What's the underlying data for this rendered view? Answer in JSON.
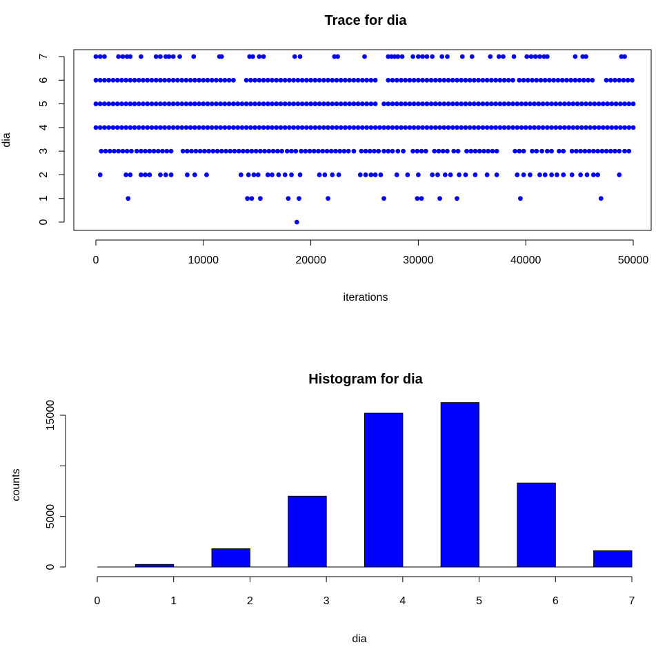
{
  "chart_data": [
    {
      "type": "scatter",
      "title": "Trace for  dia",
      "xlabel": "iterations",
      "ylabel": "dia",
      "xlim": [
        0,
        50000
      ],
      "ylim": [
        0,
        7
      ],
      "xticks": [
        "0",
        "10000",
        "20000",
        "30000",
        "40000",
        "50000"
      ],
      "yticks": [
        "0",
        "1",
        "2",
        "3",
        "4",
        "5",
        "6",
        "7"
      ],
      "marker_color": "#0000ff",
      "series": [
        {
          "values_by_level": [
            {
              "y": 0,
              "x": [
                18700
              ]
            },
            {
              "y": 1,
              "x": [
                3000,
                14100,
                14500,
                15300,
                17900,
                18900,
                21600,
                26800,
                29900,
                30300,
                32000,
                33600,
                39500,
                47000
              ]
            },
            {
              "y": 2,
              "x": [
                400,
                2800,
                3200,
                4200,
                4600,
                5000,
                6000,
                6500,
                7000,
                8500,
                9200,
                10300,
                13500,
                14200,
                14700,
                15100,
                16000,
                16400,
                17000,
                17600,
                18200,
                19000,
                20800,
                21300,
                22000,
                22600,
                24600,
                25100,
                25600,
                26000,
                26500,
                28000,
                29000,
                30000,
                31300,
                31800,
                32500,
                33000,
                33800,
                34400,
                35300,
                36400,
                37300,
                39200,
                39800,
                40400,
                41300,
                41800,
                42400,
                42900,
                43500,
                44300,
                45100,
                45700,
                46300,
                46700,
                48700
              ]
            },
            {
              "y": 3,
              "x": [
                500,
                900,
                1300,
                1700,
                2100,
                2500,
                2900,
                3300,
                3800,
                4200,
                4600,
                5000,
                5400,
                5800,
                6200,
                6600,
                7000,
                8100,
                8500,
                8900,
                9300,
                9700,
                10100,
                10500,
                10900,
                11300,
                11700,
                12100,
                12500,
                12900,
                13300,
                13700,
                14100,
                14500,
                14900,
                15300,
                15700,
                16100,
                16500,
                16900,
                17300,
                17800,
                18200,
                18600,
                19100,
                19500,
                19900,
                20300,
                20700,
                21100,
                21500,
                21900,
                22300,
                22700,
                23100,
                23500,
                24000,
                24700,
                25100,
                25500,
                25900,
                26300,
                26800,
                27200,
                27600,
                28100,
                28600,
                29500,
                29900,
                30300,
                30700,
                31500,
                31900,
                32300,
                32700,
                33300,
                33700,
                34500,
                34900,
                35300,
                35700,
                36100,
                36500,
                36900,
                37300,
                39000,
                39400,
                39800,
                40600,
                41000,
                41500,
                42000,
                42400,
                43100,
                43500,
                44300,
                44700,
                45100,
                45500,
                45900,
                46300,
                46700,
                47100,
                47500,
                47900,
                48300,
                48700,
                49200,
                49600
              ]
            },
            {
              "y": 4,
              "x": [
                0,
                400,
                800,
                1200,
                1600,
                2000,
                2400,
                2800,
                3200,
                3600,
                4000,
                4400,
                4800,
                5200,
                5600,
                6000,
                6400,
                6800,
                7200,
                7600,
                8000,
                8400,
                8800,
                9200,
                9600,
                10000,
                10400,
                10800,
                11200,
                11600,
                12000,
                12400,
                12800,
                13200,
                13600,
                14000,
                14400,
                14800,
                15200,
                15600,
                16000,
                16400,
                16800,
                17200,
                17600,
                18000,
                18400,
                18800,
                19200,
                19600,
                20000,
                20400,
                20800,
                21200,
                21600,
                22000,
                22400,
                22800,
                23200,
                23600,
                24000,
                24400,
                24800,
                25200,
                25600,
                26000,
                26400,
                26800,
                27200,
                27600,
                28000,
                28400,
                28800,
                29200,
                29600,
                30000,
                30400,
                30800,
                31200,
                31600,
                32000,
                32400,
                32800,
                33200,
                33600,
                34000,
                34400,
                34800,
                35200,
                35600,
                36000,
                36400,
                36800,
                37200,
                37600,
                38000,
                38400,
                38800,
                39200,
                39600,
                40000,
                40400,
                40800,
                41200,
                41600,
                42000,
                42400,
                42800,
                43200,
                43600,
                44000,
                44400,
                44800,
                45200,
                45600,
                46000,
                46400,
                46800,
                47200,
                47600,
                48000,
                48400,
                48800,
                49200,
                49600,
                50000
              ]
            },
            {
              "y": 5,
              "x": [
                0,
                400,
                800,
                1200,
                1600,
                2000,
                2400,
                2800,
                3200,
                3600,
                4000,
                4400,
                4800,
                5200,
                5600,
                6000,
                6400,
                6800,
                7200,
                7600,
                8000,
                8400,
                8800,
                9200,
                9600,
                10000,
                10400,
                10800,
                11200,
                11600,
                12000,
                12400,
                12800,
                13200,
                13600,
                14000,
                14400,
                14800,
                15200,
                15600,
                16000,
                16400,
                16800,
                17200,
                17600,
                18000,
                18400,
                18800,
                19200,
                19600,
                20000,
                20400,
                20800,
                21200,
                21600,
                22000,
                22400,
                22800,
                23200,
                23600,
                24000,
                24400,
                24800,
                25200,
                25600,
                26000,
                26800,
                27200,
                27600,
                28000,
                28400,
                28800,
                29200,
                29600,
                30000,
                30400,
                30800,
                31200,
                31600,
                32000,
                32400,
                32800,
                33200,
                33600,
                34000,
                34400,
                34800,
                35200,
                35600,
                36000,
                36400,
                36800,
                37200,
                37600,
                38000,
                38400,
                38800,
                39200,
                39600,
                40000,
                40400,
                40800,
                41200,
                41600,
                42000,
                42400,
                42800,
                43200,
                43600,
                44000,
                44400,
                44800,
                45200,
                45600,
                46000,
                46400,
                46800,
                47200,
                47600,
                48000,
                48400,
                48800,
                49200,
                49600,
                50000
              ]
            },
            {
              "y": 6,
              "x": [
                0,
                400,
                800,
                1200,
                1600,
                2000,
                2400,
                2800,
                3200,
                3600,
                4000,
                4400,
                4800,
                5200,
                5600,
                6000,
                6400,
                6800,
                7200,
                7600,
                8000,
                8400,
                8800,
                9200,
                9600,
                10000,
                10400,
                10800,
                11200,
                11600,
                12000,
                12400,
                12800,
                14000,
                14400,
                14800,
                15200,
                15600,
                16000,
                16400,
                16800,
                17200,
                17600,
                18000,
                18400,
                18800,
                19200,
                19600,
                20000,
                20400,
                20800,
                21200,
                21600,
                22000,
                22400,
                22800,
                23200,
                23600,
                24000,
                24400,
                24800,
                25200,
                25600,
                26000,
                27200,
                27600,
                28000,
                28400,
                28800,
                29200,
                29600,
                30000,
                30400,
                30800,
                31200,
                31600,
                32000,
                32400,
                32800,
                33200,
                33600,
                34000,
                34400,
                34800,
                35200,
                35600,
                36000,
                36400,
                36800,
                37200,
                37600,
                38000,
                38400,
                38800,
                39400,
                39800,
                40200,
                40600,
                41000,
                41400,
                41800,
                42200,
                42600,
                43000,
                43400,
                43800,
                44200,
                44600,
                45000,
                45400,
                45800,
                46200,
                47500,
                47900,
                48300,
                48700,
                49100,
                49500,
                49900
              ]
            },
            {
              "y": 7,
              "x": [
                0,
                400,
                800,
                2100,
                2500,
                2900,
                3200,
                4200,
                5600,
                6000,
                6500,
                6800,
                7200,
                7800,
                9100,
                11500,
                11700,
                14300,
                14600,
                15200,
                15600,
                18500,
                19000,
                22200,
                22500,
                25000,
                27200,
                27500,
                27800,
                28100,
                28500,
                29500,
                30000,
                30400,
                30800,
                31300,
                32200,
                32700,
                34100,
                35000,
                36700,
                37500,
                37900,
                38900,
                40100,
                40500,
                40900,
                41300,
                41700,
                42000,
                44600,
                45300,
                45600,
                48900,
                49200
              ]
            }
          ]
        }
      ]
    },
    {
      "type": "bar",
      "title": "Histogram for  dia",
      "xlabel": "dia",
      "ylabel": "counts",
      "xlim": [
        0,
        7
      ],
      "ylim": [
        0,
        16000
      ],
      "xticks": [
        "0",
        "1",
        "2",
        "3",
        "4",
        "5",
        "6",
        "7"
      ],
      "yticks": [
        "0",
        "5000",
        "15000"
      ],
      "bar_color": "#0000ff",
      "bins": [
        {
          "from": 0,
          "to": 0.5,
          "count": 0
        },
        {
          "from": 0.5,
          "to": 1,
          "count": 250
        },
        {
          "from": 1.5,
          "to": 2,
          "count": 1800
        },
        {
          "from": 2.5,
          "to": 3,
          "count": 7000
        },
        {
          "from": 3.5,
          "to": 4,
          "count": 15200
        },
        {
          "from": 4.5,
          "to": 5,
          "count": 16250
        },
        {
          "from": 5.5,
          "to": 6,
          "count": 8300
        },
        {
          "from": 6.5,
          "to": 7,
          "count": 1600
        }
      ]
    }
  ]
}
